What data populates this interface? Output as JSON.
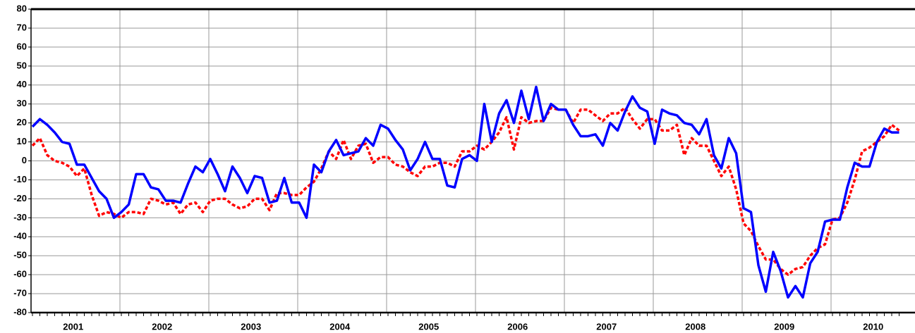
{
  "chart_data": {
    "type": "line",
    "categories": [
      null,
      null,
      null,
      null,
      null,
      "2001",
      null,
      null,
      null,
      null,
      null,
      null,
      null,
      null,
      null,
      null,
      null,
      "2002",
      null,
      null,
      null,
      null,
      null,
      null,
      null,
      null,
      null,
      null,
      null,
      "2003",
      null,
      null,
      null,
      null,
      null,
      null,
      null,
      null,
      null,
      null,
      null,
      "2004",
      null,
      null,
      null,
      null,
      null,
      null,
      null,
      null,
      null,
      null,
      null,
      "2005",
      null,
      null,
      null,
      null,
      null,
      null,
      null,
      null,
      null,
      null,
      null,
      "2006",
      null,
      null,
      null,
      null,
      null,
      null,
      null,
      null,
      null,
      null,
      null,
      "2007",
      null,
      null,
      null,
      null,
      null,
      null,
      null,
      null,
      null,
      null,
      null,
      "2008",
      null,
      null,
      null,
      null,
      null,
      null,
      null,
      null,
      null,
      null,
      null,
      "2009",
      null,
      null,
      null,
      null,
      null,
      null,
      null,
      null,
      null,
      null,
      null,
      "2010",
      null,
      null,
      null,
      null
    ],
    "series": [
      {
        "color": "#0000ff",
        "style": "solid",
        "values": [
          18,
          22,
          19,
          15,
          10,
          9,
          -2,
          -2,
          -9,
          -16,
          -20,
          -30,
          -27,
          -23,
          -7,
          -7,
          -14,
          -15,
          -21,
          -21,
          -22,
          -12,
          -3,
          -6,
          1,
          -7,
          -16,
          -3,
          -9,
          -17,
          -8,
          -9,
          -22,
          -21,
          -9,
          -22,
          -22,
          -30,
          -2,
          -6,
          5,
          11,
          3,
          4,
          5,
          12,
          8,
          19,
          17,
          11,
          6,
          -5,
          1,
          10,
          1,
          1,
          -13,
          -14,
          1,
          3,
          0,
          30,
          10,
          25,
          32,
          20,
          37,
          22,
          39,
          21,
          30,
          27,
          27,
          19,
          13,
          13,
          14,
          8,
          20,
          16,
          26,
          34,
          28,
          26,
          9,
          27,
          25,
          24,
          20,
          19,
          14,
          22,
          3,
          -4,
          12,
          4,
          -25,
          -27,
          -55,
          -69,
          -48,
          -58,
          -72,
          -66,
          -72,
          -54,
          -48,
          -32,
          -31,
          -31,
          -14,
          -1,
          -3,
          -3,
          10,
          17,
          15,
          15
        ]
      },
      {
        "color": "#ff0000",
        "style": "dotted",
        "values": [
          8,
          12,
          3,
          0,
          -1,
          -3,
          -8,
          -4,
          -18,
          -29,
          -27,
          -28,
          -30,
          -27,
          -27,
          -28,
          -20,
          -21,
          -23,
          -22,
          -28,
          -23,
          -22,
          -27,
          -21,
          -20,
          -20,
          -23,
          -25,
          -24,
          -20,
          -20,
          -26,
          -17,
          -17,
          -18,
          -18,
          -14,
          -11,
          -4,
          5,
          1,
          11,
          1,
          8,
          9,
          -1,
          2,
          2,
          -2,
          -3,
          -6,
          -8,
          -3,
          -3,
          -1,
          -1,
          -3,
          5,
          5,
          8,
          6,
          10,
          15,
          23,
          6,
          23,
          20,
          21,
          21,
          28,
          27,
          27,
          20,
          27,
          27,
          24,
          21,
          25,
          25,
          28,
          22,
          17,
          22,
          22,
          16,
          16,
          19,
          3,
          12,
          8,
          8,
          0,
          -8,
          -3,
          -15,
          -33,
          -37,
          -45,
          -52,
          -52,
          -57,
          -60,
          -57,
          -56,
          -50,
          -46,
          -44,
          -31,
          -30,
          -22,
          -10,
          5,
          7,
          10,
          13,
          19,
          16
        ]
      }
    ],
    "ylim": [
      -80,
      80
    ],
    "yticks": [
      -80,
      -70,
      -60,
      -50,
      -40,
      -30,
      -20,
      -10,
      0,
      10,
      20,
      30,
      40,
      50,
      60,
      70,
      80
    ],
    "grid": true
  }
}
